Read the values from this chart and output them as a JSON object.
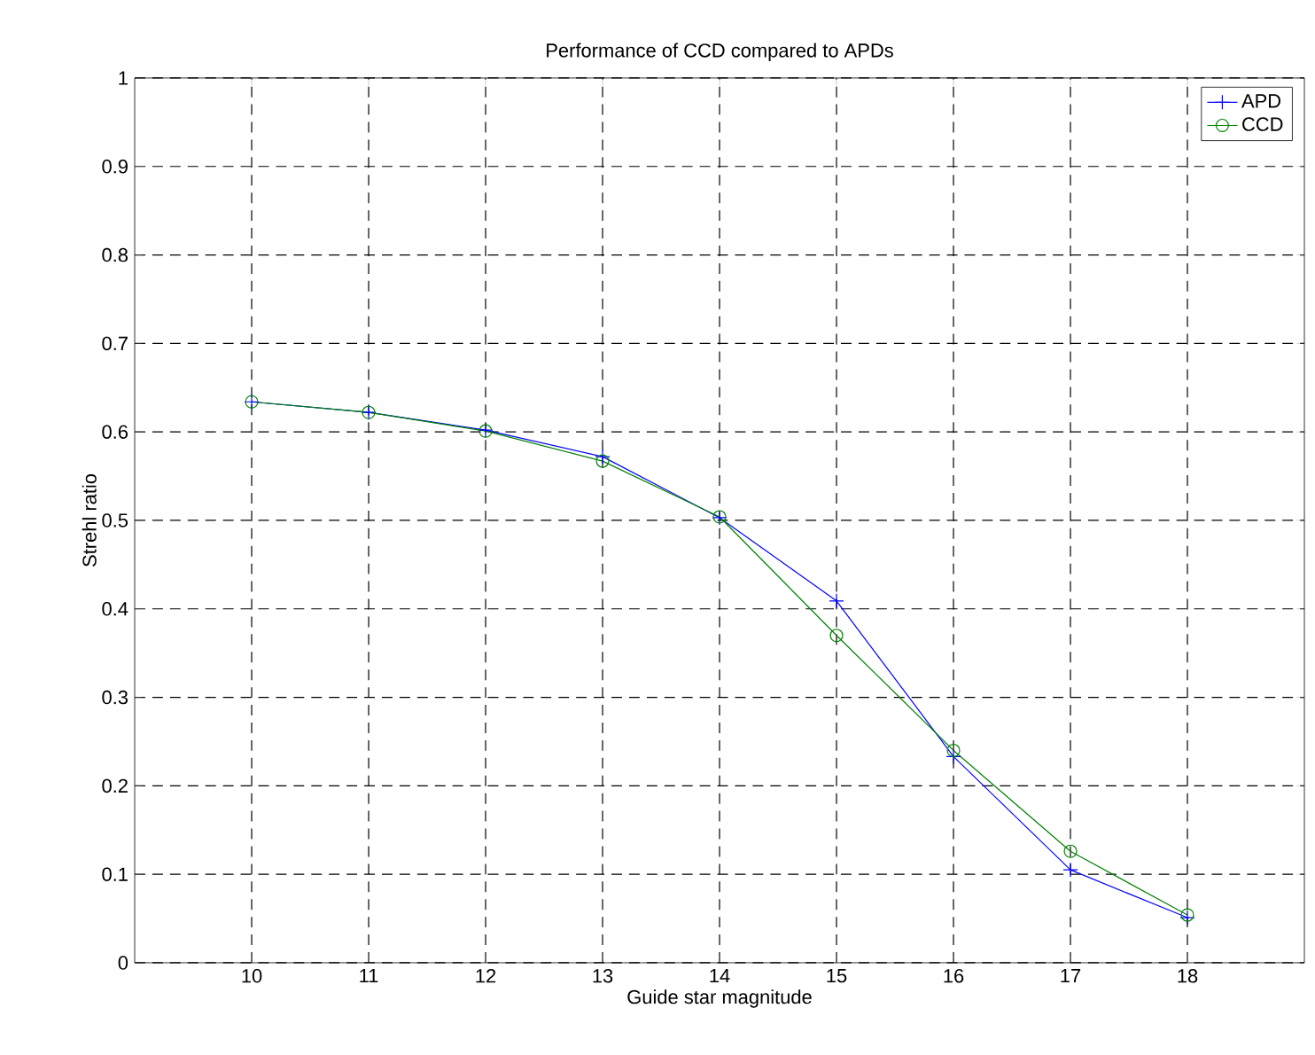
{
  "chart_data": {
    "type": "line",
    "title": "Performance of CCD compared to APDs",
    "xlabel": "Guide star magnitude",
    "ylabel": "Strehl ratio",
    "x": [
      10,
      11,
      12,
      13,
      14,
      15,
      16,
      17,
      18
    ],
    "series": [
      {
        "name": "APD",
        "color": "#0000ff",
        "marker": "cross",
        "values": [
          0.634,
          0.622,
          0.602,
          0.572,
          0.503,
          0.409,
          0.233,
          0.105,
          0.051
        ]
      },
      {
        "name": "CCD",
        "color": "#008000",
        "marker": "circle",
        "values": [
          0.634,
          0.622,
          0.601,
          0.567,
          0.504,
          0.37,
          0.24,
          0.126,
          0.054
        ]
      }
    ],
    "xlim": [
      9,
      19
    ],
    "xticks": [
      10,
      11,
      12,
      13,
      14,
      15,
      16,
      17,
      18
    ],
    "ylim": [
      0,
      1
    ],
    "yticks": [
      0,
      0.1,
      0.2,
      0.3,
      0.4,
      0.5,
      0.6,
      0.7,
      0.8,
      0.9,
      1
    ],
    "grid": true,
    "legend": "top right",
    "line_style": "solid"
  }
}
